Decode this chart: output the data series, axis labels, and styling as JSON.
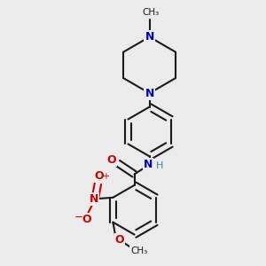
{
  "bg_color": "#ebebeb",
  "bond_color": "#1a1a1a",
  "N_color": "#0000cc",
  "O_color": "#cc0000",
  "NH_color": "#2e8b8b",
  "lw": 1.5,
  "fs": 9,
  "fs_small": 7.5,
  "xlim": [
    0.05,
    0.95
  ],
  "ylim": [
    0.02,
    0.98
  ]
}
